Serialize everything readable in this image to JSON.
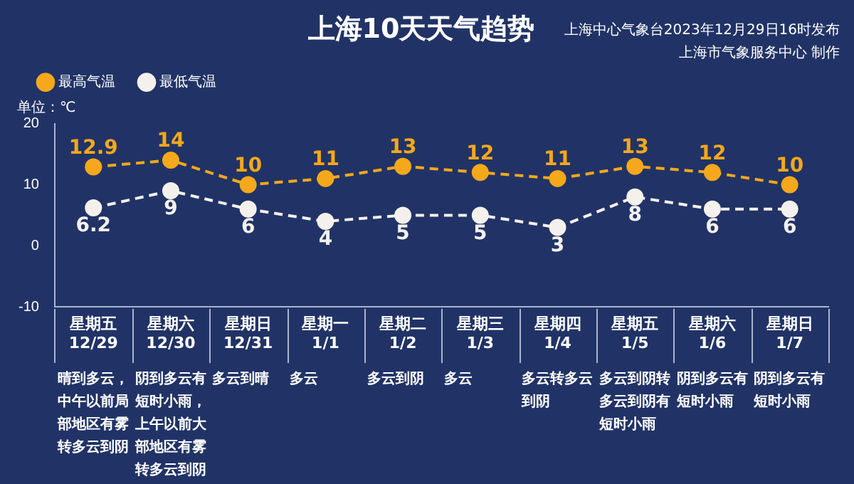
{
  "chart_data": {
    "type": "line",
    "title": "上海10天天气趋势",
    "subtitle": "上海中心气象台2023年12月29日16时发布",
    "ylabel": "单位：℃",
    "categories": [
      "星期五\n12/29",
      "星期六\n12/30",
      "星期日\n12/31",
      "星期一\n1/1",
      "星期二\n1/2",
      "星期三\n1/3",
      "星期四\n1/4",
      "星期五\n1/5",
      "星期六\n1/6",
      "星期日\n1/7"
    ],
    "series": [
      {
        "name": "最高气温",
        "color": "#f5a81c",
        "values": [
          12.9,
          14,
          10,
          11,
          13,
          12,
          11,
          13,
          12,
          10
        ]
      },
      {
        "name": "最低气温",
        "color": "#f4f1ec",
        "values": [
          6.2,
          9,
          6,
          4,
          5,
          5,
          3,
          8,
          6,
          6
        ]
      }
    ],
    "ylim": [
      -10,
      20
    ],
    "yticks": [
      -10,
      0,
      10,
      20
    ],
    "grid": false,
    "legend": "top left",
    "marker": "circle",
    "line_style": "dashed",
    "data_labels": true,
    "annotations": [
      "上海市气象服务中心 制作",
      "晴到多云，中午以前局部地区有雾转多云到阴",
      "阴到多云有短时小雨，上午以前大部地区有雾转多云到阴",
      "多云到晴",
      "多云",
      "多云到阴",
      "多云",
      "多云转多云到阴",
      "多云到阴转多云到阴有短时小雨",
      "阴到多云有短时小雨",
      "阴到多云有短时小雨"
    ]
  }
}
